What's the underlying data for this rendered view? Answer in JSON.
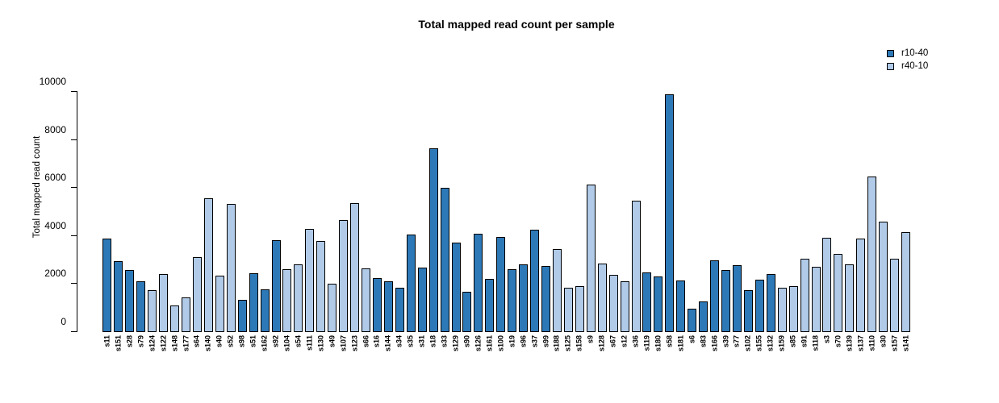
{
  "title": "Total mapped read count per sample",
  "chart_data": {
    "type": "bar",
    "title": "Total mapped read count per sample",
    "xlabel": "",
    "ylabel": "Total mapped read count",
    "ylim": [
      0,
      10000
    ],
    "yticks": [
      0,
      2000,
      4000,
      6000,
      8000,
      10000
    ],
    "grid": false,
    "legend_position": "top-right",
    "legend": [
      {
        "name": "r10-40",
        "color": "#2D79B8"
      },
      {
        "name": "r40-10",
        "color": "#B0CAE8"
      }
    ],
    "bar_border_color": "#000000",
    "bars": [
      {
        "sample": "s11",
        "value": 3880,
        "group": "r10-40"
      },
      {
        "sample": "s151",
        "value": 2950,
        "group": "r10-40"
      },
      {
        "sample": "s28",
        "value": 2570,
        "group": "r10-40"
      },
      {
        "sample": "s79",
        "value": 2100,
        "group": "r10-40"
      },
      {
        "sample": "s124",
        "value": 1740,
        "group": "r40-10"
      },
      {
        "sample": "s122",
        "value": 2420,
        "group": "r40-10"
      },
      {
        "sample": "s148",
        "value": 1100,
        "group": "r40-10"
      },
      {
        "sample": "s177",
        "value": 1450,
        "group": "r40-10"
      },
      {
        "sample": "s64",
        "value": 3110,
        "group": "r40-10"
      },
      {
        "sample": "s140",
        "value": 5560,
        "group": "r40-10"
      },
      {
        "sample": "s40",
        "value": 2350,
        "group": "r40-10"
      },
      {
        "sample": "s52",
        "value": 5320,
        "group": "r40-10"
      },
      {
        "sample": "s98",
        "value": 1350,
        "group": "r10-40"
      },
      {
        "sample": "s51",
        "value": 2460,
        "group": "r10-40"
      },
      {
        "sample": "s162",
        "value": 1770,
        "group": "r10-40"
      },
      {
        "sample": "s92",
        "value": 3840,
        "group": "r10-40"
      },
      {
        "sample": "s104",
        "value": 2630,
        "group": "r40-10"
      },
      {
        "sample": "s54",
        "value": 2810,
        "group": "r40-10"
      },
      {
        "sample": "s111",
        "value": 4280,
        "group": "r40-10"
      },
      {
        "sample": "s130",
        "value": 3800,
        "group": "r40-10"
      },
      {
        "sample": "s49",
        "value": 2000,
        "group": "r40-10"
      },
      {
        "sample": "s107",
        "value": 4650,
        "group": "r40-10"
      },
      {
        "sample": "s123",
        "value": 5360,
        "group": "r40-10"
      },
      {
        "sample": "s66",
        "value": 2640,
        "group": "r40-10"
      },
      {
        "sample": "s16",
        "value": 2260,
        "group": "r10-40"
      },
      {
        "sample": "s144",
        "value": 2110,
        "group": "r10-40"
      },
      {
        "sample": "s34",
        "value": 1840,
        "group": "r10-40"
      },
      {
        "sample": "s35",
        "value": 4070,
        "group": "r10-40"
      },
      {
        "sample": "s31",
        "value": 2690,
        "group": "r10-40"
      },
      {
        "sample": "s18",
        "value": 7640,
        "group": "r10-40"
      },
      {
        "sample": "s33",
        "value": 6010,
        "group": "r10-40"
      },
      {
        "sample": "s129",
        "value": 3710,
        "group": "r10-40"
      },
      {
        "sample": "s90",
        "value": 1680,
        "group": "r10-40"
      },
      {
        "sample": "s126",
        "value": 4090,
        "group": "r10-40"
      },
      {
        "sample": "s161",
        "value": 2220,
        "group": "r10-40"
      },
      {
        "sample": "s100",
        "value": 3960,
        "group": "r10-40"
      },
      {
        "sample": "s19",
        "value": 2620,
        "group": "r10-40"
      },
      {
        "sample": "s96",
        "value": 2820,
        "group": "r10-40"
      },
      {
        "sample": "s37",
        "value": 4270,
        "group": "r10-40"
      },
      {
        "sample": "s99",
        "value": 2760,
        "group": "r10-40"
      },
      {
        "sample": "s188",
        "value": 3450,
        "group": "r40-10"
      },
      {
        "sample": "s125",
        "value": 1840,
        "group": "r40-10"
      },
      {
        "sample": "s158",
        "value": 1900,
        "group": "r40-10"
      },
      {
        "sample": "s9",
        "value": 6140,
        "group": "r40-10"
      },
      {
        "sample": "s128",
        "value": 2840,
        "group": "r40-10"
      },
      {
        "sample": "s67",
        "value": 2380,
        "group": "r40-10"
      },
      {
        "sample": "s12",
        "value": 2110,
        "group": "r40-10"
      },
      {
        "sample": "s36",
        "value": 5480,
        "group": "r40-10"
      },
      {
        "sample": "s119",
        "value": 2490,
        "group": "r10-40"
      },
      {
        "sample": "s180",
        "value": 2330,
        "group": "r10-40"
      },
      {
        "sample": "s58",
        "value": 9910,
        "group": "r10-40"
      },
      {
        "sample": "s181",
        "value": 2150,
        "group": "r10-40"
      },
      {
        "sample": "s6",
        "value": 990,
        "group": "r10-40"
      },
      {
        "sample": "s83",
        "value": 1260,
        "group": "r10-40"
      },
      {
        "sample": "s166",
        "value": 2980,
        "group": "r10-40"
      },
      {
        "sample": "s39",
        "value": 2600,
        "group": "r10-40"
      },
      {
        "sample": "s77",
        "value": 2800,
        "group": "r10-40"
      },
      {
        "sample": "s102",
        "value": 1750,
        "group": "r10-40"
      },
      {
        "sample": "s155",
        "value": 2170,
        "group": "r10-40"
      },
      {
        "sample": "s132",
        "value": 2420,
        "group": "r10-40"
      },
      {
        "sample": "s159",
        "value": 1860,
        "group": "r40-10"
      },
      {
        "sample": "s85",
        "value": 1930,
        "group": "r40-10"
      },
      {
        "sample": "s91",
        "value": 3040,
        "group": "r40-10"
      },
      {
        "sample": "s118",
        "value": 2710,
        "group": "r40-10"
      },
      {
        "sample": "s3",
        "value": 3940,
        "group": "r40-10"
      },
      {
        "sample": "s70",
        "value": 3240,
        "group": "r40-10"
      },
      {
        "sample": "s139",
        "value": 2820,
        "group": "r40-10"
      },
      {
        "sample": "s137",
        "value": 3890,
        "group": "r40-10"
      },
      {
        "sample": "s110",
        "value": 6480,
        "group": "r40-10"
      },
      {
        "sample": "s30",
        "value": 4600,
        "group": "r40-10"
      },
      {
        "sample": "s157",
        "value": 3040,
        "group": "r40-10"
      },
      {
        "sample": "s141",
        "value": 4160,
        "group": "r40-10"
      }
    ]
  }
}
